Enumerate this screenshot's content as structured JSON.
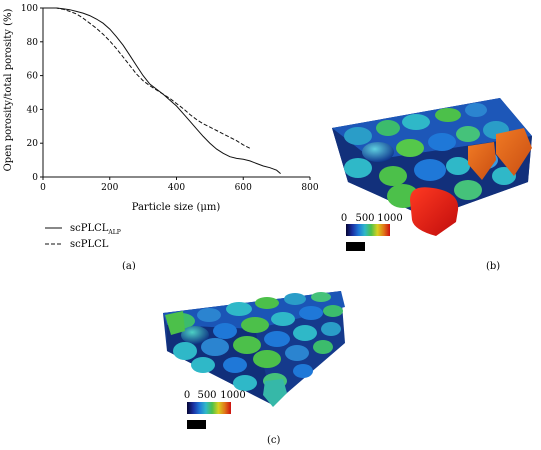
{
  "chart_data": [
    {
      "type": "line",
      "panel": "(a)",
      "title": "",
      "xlabel": "Particle size (μm)",
      "ylabel": "Open porosity/total porosity (%)",
      "xlim": [
        0,
        800
      ],
      "ylim": [
        0,
        100
      ],
      "xticks": [
        0,
        200,
        400,
        600,
        800
      ],
      "yticks": [
        0,
        20,
        40,
        60,
        80,
        100
      ],
      "grid": false,
      "legend_position": "below-left",
      "series": [
        {
          "name": "scPLCL",
          "name_subscript": "ALP",
          "line_style": "solid",
          "x": [
            0,
            40,
            60,
            80,
            100,
            120,
            140,
            160,
            180,
            200,
            220,
            240,
            260,
            280,
            300,
            320,
            340,
            360,
            380,
            400,
            420,
            440,
            460,
            480,
            500,
            520,
            540,
            560,
            580,
            600,
            620,
            640,
            660,
            680,
            700,
            712
          ],
          "y": [
            100,
            100,
            99.6,
            99,
            98,
            97,
            95.5,
            93.5,
            91,
            87.5,
            83,
            78,
            72,
            66,
            60,
            55,
            52,
            49,
            45.5,
            42,
            37.5,
            33,
            28.5,
            24,
            20,
            16.5,
            14,
            12,
            11,
            10.5,
            9.5,
            8,
            6.5,
            5.5,
            4,
            2
          ]
        },
        {
          "name": "scPLCL",
          "line_style": "dashed",
          "x": [
            0,
            40,
            60,
            80,
            100,
            120,
            140,
            160,
            180,
            200,
            220,
            240,
            260,
            280,
            300,
            320,
            340,
            360,
            380,
            400,
            420,
            440,
            460,
            480,
            500,
            520,
            540,
            560,
            580,
            600,
            620
          ],
          "y": [
            100,
            100,
            99.3,
            98,
            96.5,
            94,
            91,
            88,
            84.5,
            80.5,
            76,
            71,
            66,
            61,
            57,
            54,
            51.5,
            49,
            46.5,
            43.5,
            40.5,
            37,
            34,
            31.5,
            29.5,
            27.5,
            25.5,
            23.5,
            21.5,
            19,
            17
          ]
        }
      ]
    }
  ],
  "panels": {
    "a_label": "(a)",
    "b_label": "(b)",
    "c_label": "(c)"
  },
  "colorbar": {
    "tick_min": "0",
    "tick_mid": "500",
    "tick_max": "1000",
    "colors": [
      "#050533",
      "#1a2fa0",
      "#1f78d8",
      "#2fb8c8",
      "#4cc04a",
      "#d8d020",
      "#e07818",
      "#cc1010"
    ]
  },
  "scale_bar_color": "#000000"
}
